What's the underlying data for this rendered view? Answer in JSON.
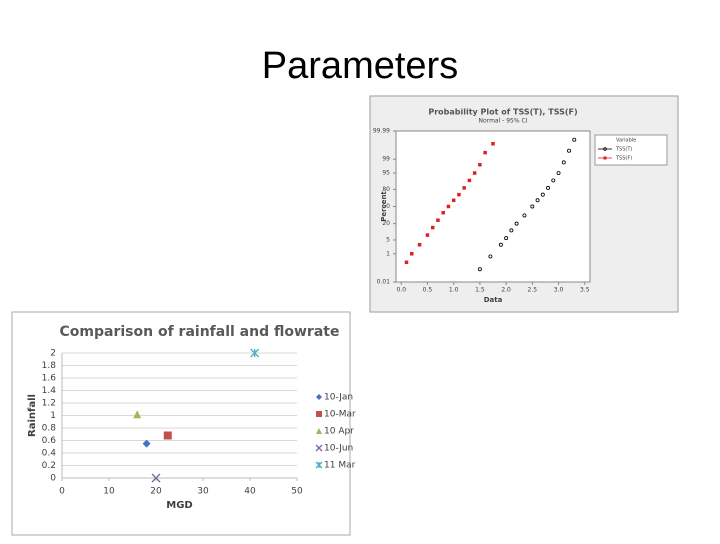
{
  "title": "Parameters",
  "chart_data": [
    {
      "type": "scatter",
      "title": "Probability Plot of TSS(T), TSS(F)",
      "subtitle": "Normal - 95% CI",
      "x_label": "Data",
      "y_label": "Percent",
      "yscale": "probability",
      "grid": false,
      "legend_title": "Variable",
      "legend": "right",
      "xlim": [
        -0.1,
        3.6
      ],
      "ylim": [
        0.01,
        99.99
      ],
      "xticks": [
        {
          "value": 0,
          "label": "0.0"
        },
        0.5,
        {
          "value": 1,
          "label": "1.0"
        },
        1.5,
        {
          "value": 2,
          "label": "2.0"
        },
        2.5,
        {
          "value": 3,
          "label": "3.0"
        },
        3.5
      ],
      "yticks": [
        0.01,
        1,
        5,
        20,
        50,
        80,
        95,
        99,
        99.99
      ],
      "series": [
        {
          "name": "TSS(T)",
          "color": "#000000",
          "marker": "circle",
          "x": [
            1.5,
            1.7,
            1.9,
            2.0,
            2.1,
            2.2,
            2.35,
            2.5,
            2.6,
            2.7,
            2.8,
            2.9,
            3.0,
            3.1,
            3.2,
            3.3
          ],
          "values": [
            0.1,
            0.7,
            3,
            6,
            12,
            20,
            33,
            50,
            62,
            72,
            82,
            90,
            95,
            98.5,
            99.7,
            99.95
          ]
        },
        {
          "name": "TSS(F)",
          "color": "#e02020",
          "marker": "square",
          "x": [
            0.1,
            0.2,
            0.35,
            0.5,
            0.6,
            0.7,
            0.8,
            0.9,
            1.0,
            1.1,
            1.2,
            1.3,
            1.4,
            1.5,
            1.6,
            1.75
          ],
          "values": [
            0.3,
            1,
            3,
            8,
            15,
            25,
            38,
            50,
            62,
            72,
            82,
            90,
            95,
            98,
            99.6,
            99.9
          ]
        }
      ]
    },
    {
      "type": "scatter",
      "title": "Comparison of rainfall and flowrate",
      "x_label": "MGD",
      "y_label": "Rainfall",
      "grid": true,
      "legend": "right",
      "xlim": [
        0,
        50
      ],
      "ylim": [
        0,
        2
      ],
      "xticks": [
        0,
        10,
        20,
        30,
        40,
        50
      ],
      "yticks": [
        0,
        0.2,
        0.4,
        0.6,
        0.8,
        1,
        1.2,
        1.4,
        1.6,
        1.8,
        2
      ],
      "series": [
        {
          "name": "10-Jan",
          "color": "#4472c4",
          "marker": "diamond",
          "x": [
            18
          ],
          "values": [
            0.55
          ]
        },
        {
          "name": "10-Mar",
          "color": "#c0504d",
          "marker": "square",
          "x": [
            22.5
          ],
          "values": [
            0.68
          ]
        },
        {
          "name": "10 Apr",
          "color": "#9bbb59",
          "marker": "triangle",
          "x": [
            16
          ],
          "values": [
            1.02
          ]
        },
        {
          "name": "10-Jun",
          "color": "#8064a2",
          "marker": "x",
          "x": [
            20
          ],
          "values": [
            0
          ]
        },
        {
          "name": "11 Mar",
          "color": "#4bacc6",
          "marker": "star",
          "x": [
            41
          ],
          "values": [
            2
          ]
        }
      ]
    }
  ]
}
